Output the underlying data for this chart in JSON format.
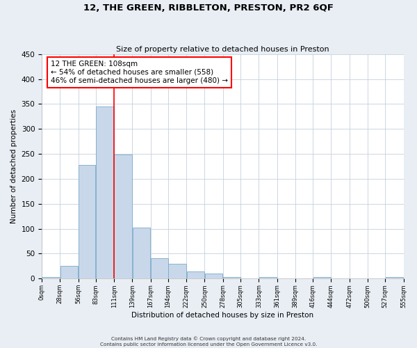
{
  "title": "12, THE GREEN, RIBBLETON, PRESTON, PR2 6QF",
  "subtitle": "Size of property relative to detached houses in Preston",
  "xlabel": "Distribution of detached houses by size in Preston",
  "ylabel": "Number of detached properties",
  "bar_color": "#c8d8ea",
  "bar_edge_color": "#7aaac8",
  "bar_left_edges": [
    0,
    28,
    56,
    83,
    111,
    139,
    167,
    194,
    222,
    250,
    278,
    305,
    333,
    361,
    389,
    416,
    444,
    472,
    500,
    527
  ],
  "bar_widths": [
    28,
    28,
    27,
    28,
    28,
    28,
    27,
    28,
    28,
    28,
    27,
    28,
    28,
    28,
    27,
    28,
    28,
    28,
    27,
    28
  ],
  "bar_heights": [
    3,
    25,
    228,
    345,
    248,
    102,
    41,
    30,
    15,
    10,
    3,
    0,
    3,
    0,
    0,
    3,
    0,
    0,
    0,
    3
  ],
  "x_tick_labels": [
    "0sqm",
    "28sqm",
    "56sqm",
    "83sqm",
    "111sqm",
    "139sqm",
    "167sqm",
    "194sqm",
    "222sqm",
    "250sqm",
    "278sqm",
    "305sqm",
    "333sqm",
    "361sqm",
    "389sqm",
    "416sqm",
    "444sqm",
    "472sqm",
    "500sqm",
    "527sqm",
    "555sqm"
  ],
  "x_tick_positions": [
    0,
    28,
    56,
    83,
    111,
    139,
    167,
    194,
    222,
    250,
    278,
    305,
    333,
    361,
    389,
    416,
    444,
    472,
    500,
    527,
    555
  ],
  "ylim": [
    0,
    450
  ],
  "xlim": [
    0,
    555
  ],
  "yticks": [
    0,
    50,
    100,
    150,
    200,
    250,
    300,
    350,
    400,
    450
  ],
  "vline_x": 111,
  "annotation_line1": "12 THE GREEN: 108sqm",
  "annotation_line2": "← 54% of detached houses are smaller (558)",
  "annotation_line3": "46% of semi-detached houses are larger (480) →",
  "footer_line1": "Contains HM Land Registry data © Crown copyright and database right 2024.",
  "footer_line2": "Contains public sector information licensed under the Open Government Licence v3.0.",
  "bg_color": "#e8eef4",
  "plot_bg_color": "#ffffff",
  "grid_color": "#c5d0dc"
}
